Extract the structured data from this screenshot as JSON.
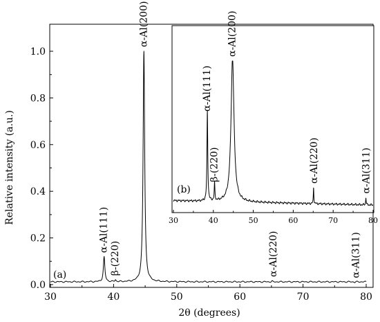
{
  "chart_data": [
    {
      "type": "line",
      "panel_label": "(a)",
      "xlabel": "2θ (degrees)",
      "ylabel": "Relative intensity (a.u.)",
      "xlim": [
        30,
        80
      ],
      "ylim": [
        0,
        1.0
      ],
      "x_ticks": [
        "30",
        "40",
        "50",
        "60",
        "70",
        "80"
      ],
      "y_ticks": [
        "0.0",
        "0.2",
        "0.4",
        "0.6",
        "0.8",
        "1.0"
      ],
      "baseline": 0.012,
      "peaks": [
        {
          "x": 38.5,
          "y": 0.118,
          "label": "α-Al(111)"
        },
        {
          "x": 40.3,
          "y": 0.02,
          "label": "β-(220)"
        },
        {
          "x": 44.8,
          "y": 1.0,
          "label": "α-Al(200)"
        },
        {
          "x": 65.1,
          "y": 0.015,
          "label": "α-Al(220)"
        },
        {
          "x": 78.2,
          "y": 0.01,
          "label": "α-Al(311)"
        }
      ]
    },
    {
      "type": "line",
      "panel_label": "(b)",
      "xlim": [
        30,
        80
      ],
      "x_ticks": [
        "30",
        "40",
        "50",
        "60",
        "70",
        "80"
      ],
      "peaks": [
        {
          "x": 38.5,
          "y": 0.62,
          "label": "α-Al(111)"
        },
        {
          "x": 40.3,
          "y": 0.12,
          "label": "β-(220)"
        },
        {
          "x": 44.8,
          "y": 1.0,
          "label": "α-Al(200)"
        },
        {
          "x": 65.1,
          "y": 0.11,
          "label": "α-Al(220)"
        },
        {
          "x": 78.2,
          "y": 0.05,
          "label": "α-Al(311)"
        }
      ]
    }
  ]
}
